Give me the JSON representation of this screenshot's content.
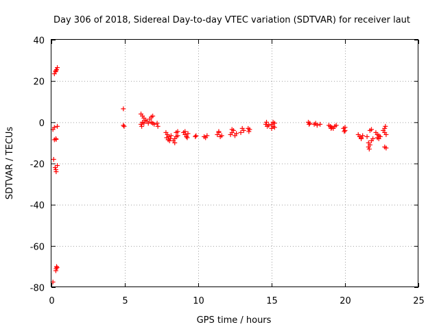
{
  "chart_data": {
    "type": "scatter",
    "title": "Day 306 of 2018, Sidereal Day-to-day VTEC variation (SDTVAR) for receiver laut",
    "xlabel": "GPS time / hours",
    "ylabel": "SDTVAR / TECUs",
    "xlim": [
      0,
      25
    ],
    "ylim": [
      -80,
      40
    ],
    "xticks": [
      "0",
      "5",
      "10",
      "15",
      "20",
      "25"
    ],
    "yticks": [
      "-80",
      "-60",
      "-40",
      "-20",
      "0",
      "20",
      "40"
    ],
    "grid": true,
    "series": [
      {
        "name": "SDTVAR",
        "color": "#ff0000",
        "marker": "plus",
        "points": [
          [
            0.1,
            -77.5
          ],
          [
            0.3,
            -72
          ],
          [
            0.32,
            -71
          ],
          [
            0.35,
            -70
          ],
          [
            0.38,
            -70.5
          ],
          [
            0.15,
            -18
          ],
          [
            0.25,
            -22
          ],
          [
            0.3,
            -23
          ],
          [
            0.32,
            -24
          ],
          [
            0.4,
            -21
          ],
          [
            0.2,
            -8.5
          ],
          [
            0.3,
            -8
          ],
          [
            0.32,
            -8.3
          ],
          [
            0.1,
            -3.5
          ],
          [
            0.2,
            -2.5
          ],
          [
            0.4,
            -2
          ],
          [
            0.2,
            23.5
          ],
          [
            0.28,
            24.5
          ],
          [
            0.3,
            25
          ],
          [
            0.35,
            25.5
          ],
          [
            0.4,
            26.5
          ],
          [
            4.9,
            6.5
          ],
          [
            4.9,
            -1.5
          ],
          [
            4.95,
            -2
          ],
          [
            6.1,
            4
          ],
          [
            6.2,
            3
          ],
          [
            6.3,
            2
          ],
          [
            6.4,
            1
          ],
          [
            6.2,
            0
          ],
          [
            6.3,
            -0.5
          ],
          [
            6.1,
            -1
          ],
          [
            6.15,
            -2
          ],
          [
            6.5,
            0.5
          ],
          [
            6.6,
            -0.5
          ],
          [
            6.7,
            1.5
          ],
          [
            6.8,
            2.5
          ],
          [
            6.9,
            3
          ],
          [
            6.8,
            0
          ],
          [
            6.9,
            -0.5
          ],
          [
            7.0,
            -1
          ],
          [
            7.2,
            -0.5
          ],
          [
            7.25,
            -2
          ],
          [
            7.8,
            -5
          ],
          [
            7.9,
            -6
          ],
          [
            8.0,
            -7
          ],
          [
            8.1,
            -8
          ],
          [
            7.85,
            -7.5
          ],
          [
            7.95,
            -8.5
          ],
          [
            8.05,
            -9
          ],
          [
            8.15,
            -6.5
          ],
          [
            8.3,
            -9
          ],
          [
            8.4,
            -8
          ],
          [
            8.5,
            -7
          ],
          [
            8.6,
            -6.5
          ],
          [
            8.5,
            -5
          ],
          [
            8.6,
            -4.5
          ],
          [
            8.4,
            -10
          ],
          [
            9.0,
            -5
          ],
          [
            9.1,
            -6
          ],
          [
            9.2,
            -7
          ],
          [
            9.3,
            -5.5
          ],
          [
            9.1,
            -4.5
          ],
          [
            9.25,
            -7.5
          ],
          [
            9.8,
            -7
          ],
          [
            9.85,
            -6.5
          ],
          [
            10.4,
            -7
          ],
          [
            10.5,
            -7.5
          ],
          [
            10.6,
            -6.5
          ],
          [
            11.3,
            -6
          ],
          [
            11.4,
            -5
          ],
          [
            11.5,
            -7
          ],
          [
            11.6,
            -6.5
          ],
          [
            11.4,
            -4.5
          ],
          [
            12.2,
            -6
          ],
          [
            12.3,
            -5
          ],
          [
            12.4,
            -4
          ],
          [
            12.5,
            -6.5
          ],
          [
            12.6,
            -5.5
          ],
          [
            12.3,
            -3.5
          ],
          [
            12.9,
            -5
          ],
          [
            13.0,
            -3
          ],
          [
            13.1,
            -4
          ],
          [
            13.4,
            -3
          ],
          [
            13.5,
            -3.5
          ],
          [
            13.45,
            -4.5
          ],
          [
            14.6,
            -1
          ],
          [
            14.7,
            -2
          ],
          [
            14.8,
            -1.5
          ],
          [
            14.65,
            0
          ],
          [
            15.0,
            -1
          ],
          [
            15.1,
            -2
          ],
          [
            15.2,
            -0.5
          ],
          [
            15.0,
            -3
          ],
          [
            15.1,
            0
          ],
          [
            15.2,
            -2.5
          ],
          [
            17.5,
            0
          ],
          [
            17.6,
            -0.5
          ],
          [
            17.55,
            -1
          ],
          [
            17.9,
            -1
          ],
          [
            18.0,
            -0.5
          ],
          [
            18.1,
            -1.5
          ],
          [
            18.3,
            -1
          ],
          [
            18.9,
            -1.5
          ],
          [
            19.0,
            -2
          ],
          [
            19.1,
            -2.5
          ],
          [
            19.2,
            -3
          ],
          [
            19.3,
            -2
          ],
          [
            19.4,
            -1.5
          ],
          [
            19.05,
            -3
          ],
          [
            19.9,
            -3
          ],
          [
            20.0,
            -4
          ],
          [
            19.95,
            -4.5
          ],
          [
            20.0,
            -2.5
          ],
          [
            20.9,
            -6
          ],
          [
            21.0,
            -7
          ],
          [
            21.1,
            -7.5
          ],
          [
            21.2,
            -6.5
          ],
          [
            21.1,
            -8
          ],
          [
            21.5,
            -7
          ],
          [
            21.6,
            -10
          ],
          [
            21.7,
            -11
          ],
          [
            21.6,
            -12
          ],
          [
            21.8,
            -9
          ],
          [
            21.9,
            -8
          ],
          [
            21.7,
            -4
          ],
          [
            21.8,
            -3.5
          ],
          [
            21.65,
            -13
          ],
          [
            22.1,
            -5
          ],
          [
            22.2,
            -6
          ],
          [
            22.3,
            -6.5
          ],
          [
            22.4,
            -7
          ],
          [
            22.2,
            -7.5
          ],
          [
            22.3,
            -8
          ],
          [
            22.6,
            -4
          ],
          [
            22.7,
            -5
          ],
          [
            22.8,
            -6
          ],
          [
            22.75,
            -2
          ],
          [
            22.7,
            -3
          ],
          [
            22.7,
            -12
          ],
          [
            22.8,
            -12.5
          ]
        ]
      }
    ]
  }
}
